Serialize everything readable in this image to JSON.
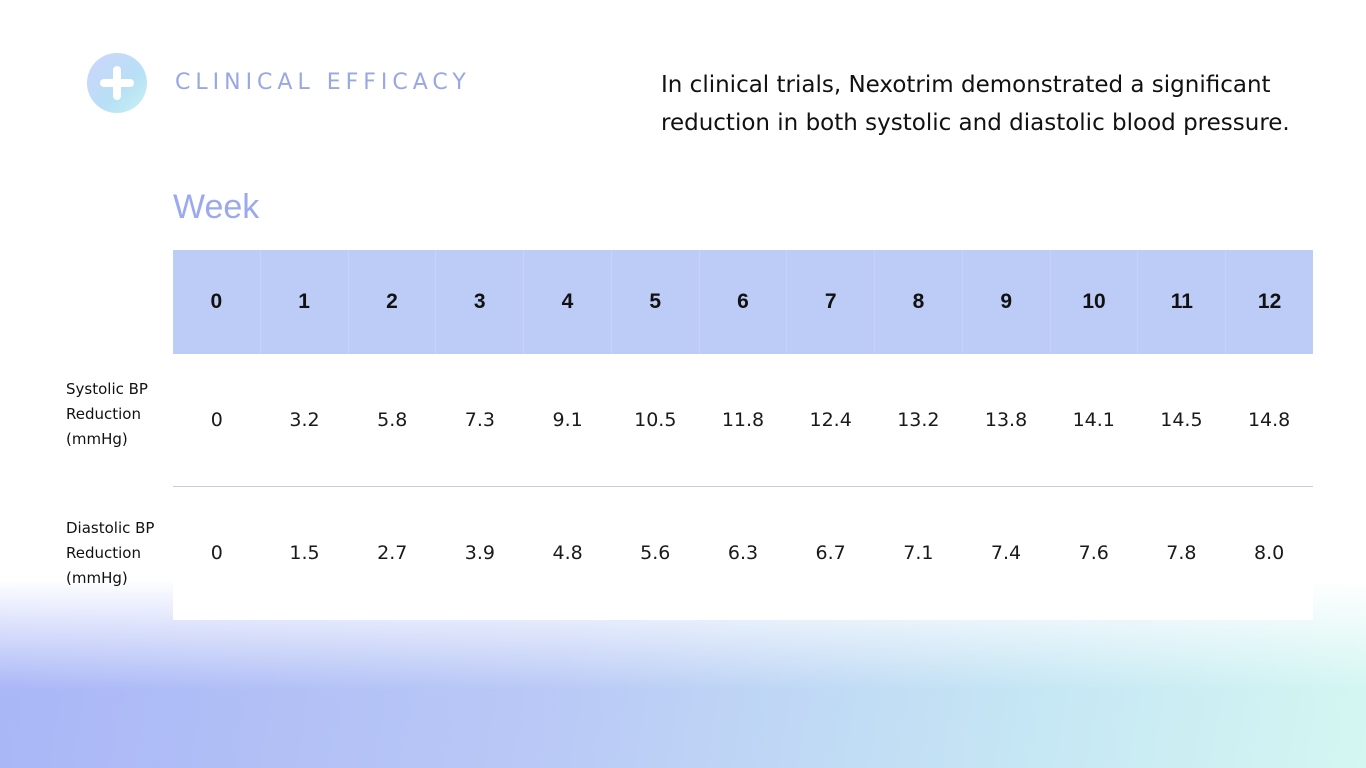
{
  "header": {
    "eyebrow": "CLINICAL EFFICACY",
    "intro": "In clinical trials, Nexotrim demonstrated a significant reduction in both systolic and diastolic blood pressure.",
    "logo_icon": "plus-icon"
  },
  "table": {
    "column_group_label": "Week",
    "weeks": [
      "0",
      "1",
      "2",
      "3",
      "4",
      "5",
      "6",
      "7",
      "8",
      "9",
      "10",
      "11",
      "12"
    ],
    "rows": [
      {
        "label_lines": [
          "Systolic BP",
          "Reduction",
          "(mmHg)"
        ],
        "values": [
          "0",
          "3.2",
          "5.8",
          "7.3",
          "9.1",
          "10.5",
          "11.8",
          "12.4",
          "13.2",
          "13.8",
          "14.1",
          "14.5",
          "14.8"
        ]
      },
      {
        "label_lines": [
          "Diastolic BP",
          "Reduction",
          "(mmHg)"
        ],
        "values": [
          "0",
          "1.5",
          "2.7",
          "3.9",
          "4.8",
          "5.6",
          "6.3",
          "6.7",
          "7.1",
          "7.4",
          "7.6",
          "7.8",
          "8.0"
        ]
      }
    ]
  },
  "colors": {
    "accent": "#9aa7e6",
    "header_fill": "#bdccf7",
    "gradient_start": "#a9b6f7",
    "gradient_end": "#d4f7f2"
  }
}
